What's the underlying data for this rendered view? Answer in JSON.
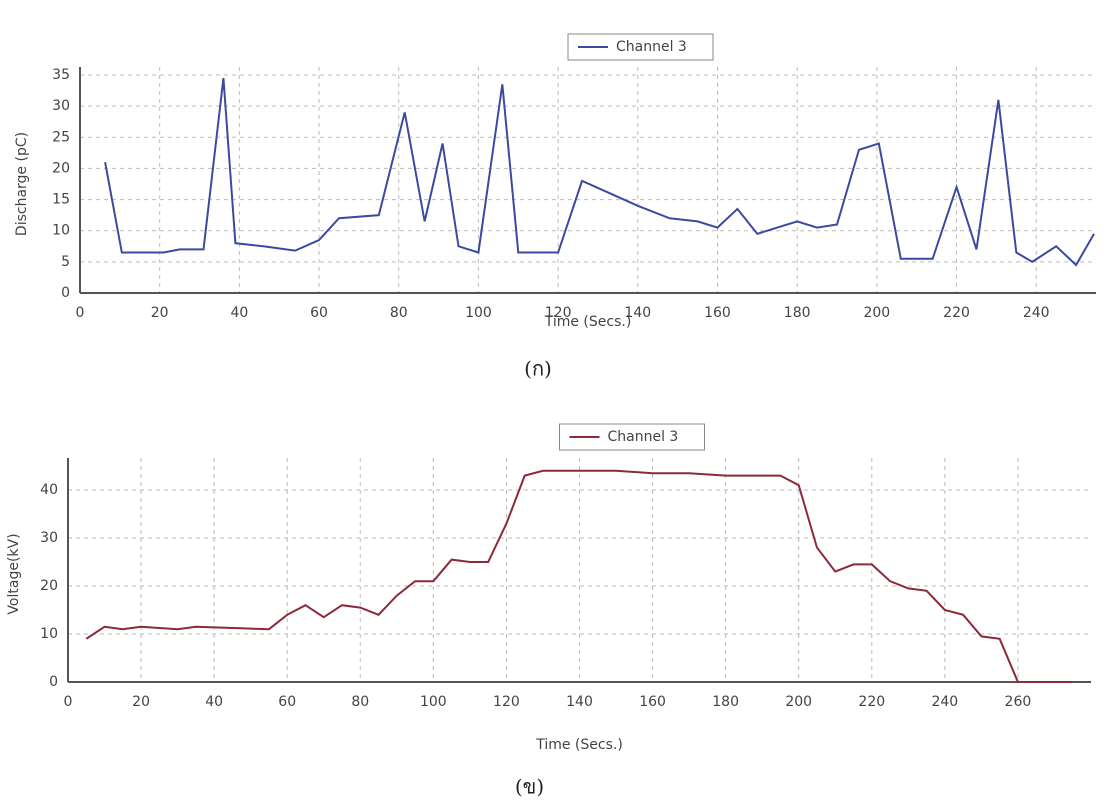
{
  "chart_data": [
    {
      "type": "line",
      "x_label": "Time (Secs.)",
      "y_label": "Discharge (pC)",
      "caption": "(ก)",
      "xlim": [
        0,
        255
      ],
      "ylim": [
        0,
        35
      ],
      "xticks": [
        0,
        20,
        40,
        60,
        80,
        100,
        120,
        140,
        160,
        180,
        200,
        220,
        240
      ],
      "yticks": [
        0,
        5,
        10,
        15,
        20,
        25,
        30,
        35
      ],
      "grid": true,
      "legend": "upper center",
      "series": [
        {
          "name": "Channel 3",
          "color": "#3b4aa0",
          "x": [
            6.3,
            10.5,
            21,
            25,
            31,
            36,
            39,
            46,
            54,
            60,
            65,
            75,
            81.5,
            86.5,
            91,
            95,
            100,
            106,
            110,
            120,
            126,
            133,
            140,
            148,
            155,
            160,
            165,
            170,
            175,
            180,
            185,
            190,
            195.5,
            200.5,
            206,
            214,
            220,
            225,
            230.5,
            235,
            239,
            245,
            250,
            254.5
          ],
          "values": [
            21,
            6.5,
            6.5,
            7,
            7,
            34.5,
            8,
            7.5,
            6.8,
            8.5,
            12,
            12.5,
            29,
            11.5,
            24,
            7.5,
            6.5,
            33.5,
            6.5,
            6.5,
            18,
            16,
            14,
            12,
            11.5,
            10.5,
            13.5,
            9.5,
            10.5,
            11.5,
            10.5,
            11,
            23,
            24,
            5.5,
            5.5,
            17,
            7,
            31,
            6.5,
            5,
            7.5,
            4.5,
            9.5
          ]
        }
      ]
    },
    {
      "type": "line",
      "x_label": "Time (Secs.)",
      "y_label": "Voltage(kV)",
      "caption": "(ข)",
      "xlim": [
        0,
        280
      ],
      "ylim": [
        0,
        45
      ],
      "xticks": [
        0,
        20,
        40,
        60,
        80,
        100,
        120,
        140,
        160,
        180,
        200,
        220,
        240,
        260
      ],
      "yticks": [
        0,
        10,
        20,
        30,
        40
      ],
      "grid": true,
      "legend": "upper center",
      "series": [
        {
          "name": "Channel 3",
          "color": "#8b2a3a",
          "x": [
            5,
            10,
            15,
            20,
            30,
            35,
            55,
            60,
            65,
            70,
            75,
            80,
            85,
            90,
            95,
            100,
            105,
            110,
            115,
            120,
            125,
            130,
            140,
            150,
            160,
            170,
            180,
            195,
            200,
            205,
            210,
            215,
            220,
            225,
            230,
            235,
            240,
            245,
            250,
            255,
            260,
            265,
            275
          ],
          "values": [
            9,
            11.5,
            11,
            11.5,
            11,
            11.5,
            11,
            14,
            16,
            13.5,
            16,
            15.5,
            14,
            18,
            21,
            21,
            25.5,
            25,
            25,
            33,
            43,
            44,
            44,
            44,
            43.5,
            43.5,
            43,
            43,
            41,
            28,
            23,
            24.5,
            24.5,
            21,
            19.5,
            19,
            15,
            14,
            9.5,
            9,
            0,
            0,
            0
          ]
        }
      ]
    }
  ]
}
